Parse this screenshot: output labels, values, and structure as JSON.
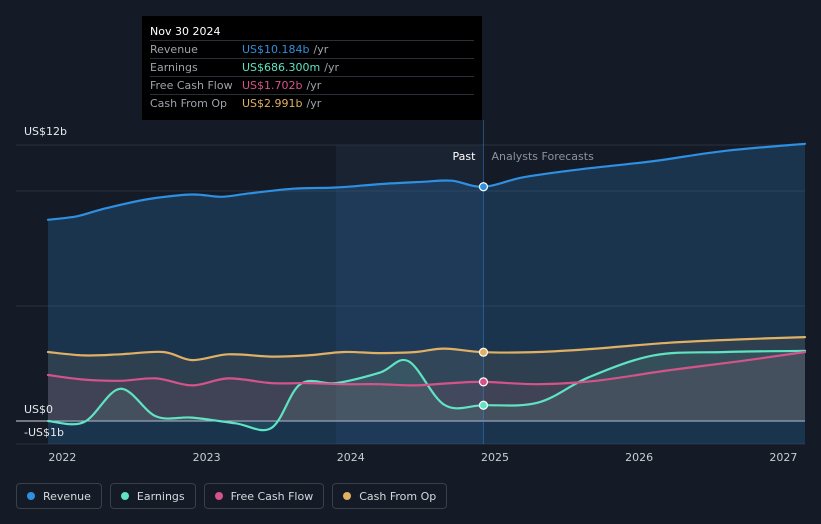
{
  "tooltip": {
    "date": "Nov 30 2024",
    "rows": [
      {
        "label": "Revenue",
        "value": "US$10.184b",
        "unit": "/yr",
        "color": "#2f8fe0"
      },
      {
        "label": "Earnings",
        "value": "US$686.300m",
        "unit": "/yr",
        "color": "#5fe3c2"
      },
      {
        "label": "Free Cash Flow",
        "value": "US$1.702b",
        "unit": "/yr",
        "color": "#d4548a"
      },
      {
        "label": "Cash From Op",
        "value": "US$2.991b",
        "unit": "/yr",
        "color": "#e0b064"
      }
    ]
  },
  "legend": [
    {
      "label": "Revenue",
      "color": "#2f8fe0"
    },
    {
      "label": "Earnings",
      "color": "#5fe3c2"
    },
    {
      "label": "Free Cash Flow",
      "color": "#d4548a"
    },
    {
      "label": "Cash From Op",
      "color": "#e0b064"
    }
  ],
  "chart_data": {
    "type": "line",
    "x_axis": {
      "ticks": [
        2022,
        2023,
        2024,
        2025,
        2026,
        2027
      ],
      "range": [
        2021.9,
        2027.15
      ]
    },
    "y_axis": {
      "ticks": [
        {
          "value": 12,
          "label": "US$12b"
        },
        {
          "value": 0,
          "label": "US$0"
        },
        {
          "value": -1,
          "label": "-US$1b"
        }
      ],
      "range": [
        -1,
        12
      ]
    },
    "divider_x": 2024.92,
    "past_label": "Past",
    "forecast_label": "Analysts Forecasts",
    "series": [
      {
        "name": "Revenue",
        "color": "#2f8fe0",
        "x": [
          2021.9,
          2022.1,
          2022.3,
          2022.6,
          2022.9,
          2023.1,
          2023.3,
          2023.6,
          2023.9,
          2024.2,
          2024.5,
          2024.7,
          2024.92,
          2025.2,
          2025.6,
          2026.1,
          2026.6,
          2027.15
        ],
        "y": [
          8.75,
          8.9,
          9.25,
          9.65,
          9.85,
          9.75,
          9.9,
          10.1,
          10.15,
          10.3,
          10.4,
          10.45,
          10.184,
          10.6,
          10.95,
          11.3,
          11.75,
          12.05
        ]
      },
      {
        "name": "Earnings",
        "color": "#5fe3c2",
        "x": [
          2021.9,
          2022.15,
          2022.4,
          2022.65,
          2022.9,
          2023.2,
          2023.45,
          2023.65,
          2023.9,
          2024.2,
          2024.4,
          2024.65,
          2024.92,
          2025.3,
          2025.65,
          2026.1,
          2026.6,
          2027.15
        ],
        "y": [
          0.0,
          -0.05,
          1.4,
          0.2,
          0.15,
          -0.1,
          -0.3,
          1.6,
          1.65,
          2.1,
          2.6,
          0.7,
          0.686,
          0.8,
          1.9,
          2.85,
          3.0,
          3.05
        ]
      },
      {
        "name": "Free Cash Flow",
        "color": "#d4548a",
        "x": [
          2021.9,
          2022.15,
          2022.4,
          2022.65,
          2022.9,
          2023.15,
          2023.45,
          2023.7,
          2023.95,
          2024.2,
          2024.45,
          2024.7,
          2024.92,
          2025.3,
          2025.7,
          2026.2,
          2026.7,
          2027.15
        ],
        "y": [
          2.0,
          1.8,
          1.75,
          1.85,
          1.55,
          1.85,
          1.65,
          1.65,
          1.6,
          1.6,
          1.55,
          1.65,
          1.702,
          1.6,
          1.75,
          2.2,
          2.6,
          3.0
        ]
      },
      {
        "name": "Cash From Op",
        "color": "#e0b064",
        "x": [
          2021.9,
          2022.15,
          2022.4,
          2022.7,
          2022.9,
          2023.15,
          2023.45,
          2023.7,
          2023.95,
          2024.2,
          2024.45,
          2024.65,
          2024.92,
          2025.3,
          2025.7,
          2026.2,
          2026.7,
          2027.15
        ],
        "y": [
          3.0,
          2.85,
          2.9,
          3.0,
          2.65,
          2.9,
          2.8,
          2.85,
          3.0,
          2.95,
          3.0,
          3.15,
          2.991,
          3.0,
          3.15,
          3.4,
          3.55,
          3.65
        ]
      }
    ]
  }
}
